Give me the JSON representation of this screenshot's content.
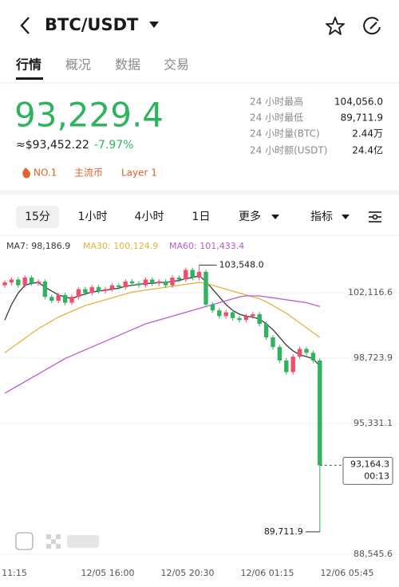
{
  "header": {
    "title": "BTC/USDT"
  },
  "tabs": [
    "行情",
    "概况",
    "数据",
    "交易"
  ],
  "price": {
    "last": "93,229.4",
    "usd": "≈$93,452.22",
    "change": "-7.97%"
  },
  "stats": [
    {
      "label": "24 小时最高",
      "value": "104,056.0"
    },
    {
      "label": "24 小时最低",
      "value": "89,711.9"
    },
    {
      "label": "24 小时量(BTC)",
      "value": "2.44万"
    },
    {
      "label": "24 小时额(USDT)",
      "value": "24.4亿"
    }
  ],
  "tags": [
    "NO.1",
    "主流币",
    "Layer 1"
  ],
  "intervals": [
    "15分",
    "1小时",
    "4小时",
    "1日",
    "更多",
    "指标"
  ],
  "chart": {
    "type": "candlestick",
    "up_color": "#ef4f6c",
    "down_color": "#2fb35f",
    "ylim": [
      88132,
      104061
    ],
    "yticks": [
      {
        "value": 102116.6,
        "label": "102,116.6"
      },
      {
        "value": 98723.9,
        "label": "98,723.9"
      },
      {
        "value": 95331.1,
        "label": "95,331.1"
      },
      {
        "value": 88545.6,
        "label": "88,545.6"
      }
    ],
    "x_labels": [
      "11:15",
      "12/05 16:00",
      "12/05 20:30",
      "12/06 01:15",
      "12/06 05:45"
    ],
    "max_label": {
      "value": 103548.0,
      "label": "103,548.0"
    },
    "min_label": {
      "value": 89711.9,
      "label": "89,711.9"
    },
    "last_label": {
      "value": 93164.3,
      "label": "93,164.3",
      "countdown": "00:13"
    },
    "open": [
      102500,
      102650,
      102800,
      102500,
      102900,
      102600,
      102700,
      101900,
      101700,
      102000,
      101600,
      101900,
      102300,
      102100,
      102400,
      102200,
      102300,
      102500,
      102400,
      102700,
      102600,
      102500,
      102800,
      102600,
      102700,
      102500,
      102900,
      102800,
      103300,
      102900,
      103200,
      101500,
      101200,
      100900,
      101100,
      100800,
      100700,
      100900,
      101000,
      100500,
      99800,
      99300,
      98600,
      98000,
      98800,
      99200,
      99000,
      98600
    ],
    "high": [
      102770,
      102920,
      102920,
      103020,
      103020,
      102820,
      102820,
      102020,
      102120,
      102120,
      102020,
      102420,
      102420,
      102520,
      102520,
      102420,
      102620,
      102620,
      102820,
      102820,
      102720,
      102920,
      102920,
      102820,
      102820,
      103020,
      103020,
      103420,
      103420,
      103548,
      103320,
      101620,
      101320,
      101220,
      101220,
      100920,
      101020,
      101120,
      101120,
      100620,
      99920,
      99420,
      98720,
      98920,
      99320,
      99320,
      99120,
      98720
    ],
    "low": [
      102370,
      102520,
      102370,
      102370,
      102470,
      102470,
      101770,
      101570,
      101570,
      101470,
      101470,
      101770,
      101970,
      101970,
      102070,
      102070,
      102170,
      102270,
      102270,
      102470,
      102370,
      102370,
      102470,
      102470,
      102370,
      102370,
      102670,
      102670,
      102770,
      102770,
      101370,
      101070,
      100770,
      100770,
      100670,
      100570,
      100570,
      100770,
      100370,
      99670,
      99170,
      98470,
      97870,
      97870,
      98670,
      98870,
      98470,
      89711.9
    ],
    "close": [
      102650,
      102800,
      102500,
      102900,
      102600,
      102700,
      101900,
      101700,
      102000,
      101600,
      101900,
      102300,
      102100,
      102400,
      102200,
      102300,
      102500,
      102400,
      102700,
      102600,
      102500,
      102800,
      102600,
      102700,
      102500,
      102900,
      102800,
      103300,
      102900,
      103200,
      101500,
      101200,
      100900,
      101100,
      100800,
      100700,
      100900,
      101000,
      100500,
      99800,
      99300,
      98600,
      98000,
      98800,
      99200,
      99000,
      98600,
      93164.3
    ],
    "indicators": [
      {
        "label": "MA7: 98,186.9",
        "color": "#3a3a3a",
        "values": [
          100700,
          101500,
          102100,
          102500,
          102600,
          102650,
          102400,
          102200,
          102000,
          101900,
          101800,
          101950,
          102050,
          102150,
          102200,
          102250,
          102300,
          102350,
          102450,
          102500,
          102550,
          102600,
          102600,
          102650,
          102650,
          102700,
          102750,
          102850,
          102900,
          103000,
          102700,
          102300,
          101900,
          101500,
          101200,
          101000,
          100900,
          100850,
          100750,
          100500,
          100200,
          99800,
          99400,
          99100,
          98900,
          98800,
          98700,
          98300
        ]
      },
      {
        "label": "MA30: 100,124.9",
        "color": "#e6b23a",
        "values": [
          99000,
          99250,
          99500,
          99750,
          100000,
          100250,
          100450,
          100650,
          100850,
          101000,
          101150,
          101300,
          101450,
          101550,
          101650,
          101750,
          101850,
          101950,
          102050,
          102150,
          102200,
          102250,
          102300,
          102350,
          102400,
          102450,
          102500,
          102550,
          102600,
          102650,
          102600,
          102500,
          102400,
          102300,
          102200,
          102100,
          102000,
          101900,
          101800,
          101650,
          101450,
          101250,
          101050,
          100800,
          100550,
          100300,
          100050,
          99800
        ]
      },
      {
        "label": "MA60: 101,433.4",
        "color": "#b65bd0",
        "values": [
          96900,
          97100,
          97300,
          97500,
          97700,
          97900,
          98100,
          98300,
          98500,
          98700,
          98850,
          99000,
          99150,
          99300,
          99450,
          99600,
          99750,
          99900,
          100050,
          100200,
          100350,
          100500,
          100600,
          100700,
          100800,
          100900,
          101000,
          101100,
          101200,
          101300,
          101400,
          101500,
          101600,
          101700,
          101800,
          101900,
          101950,
          101950,
          101950,
          101900,
          101850,
          101800,
          101750,
          101700,
          101650,
          101600,
          101500,
          101400
        ]
      }
    ]
  }
}
